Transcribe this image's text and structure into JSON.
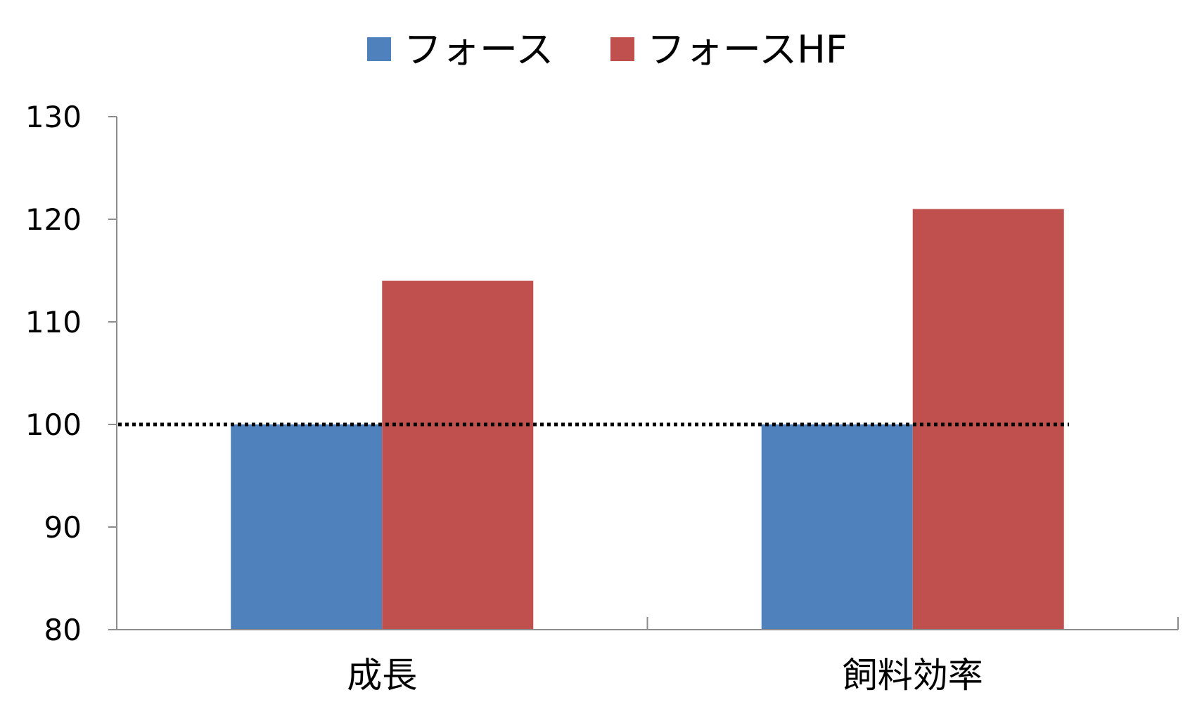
{
  "chart_data": {
    "type": "bar",
    "categories": [
      "成長",
      "飼料効率"
    ],
    "series": [
      {
        "name": "フォース",
        "color": "#4F81BD",
        "values": [
          100,
          100
        ]
      },
      {
        "name": "フォースHF",
        "color": "#C0504D",
        "values": [
          114,
          121
        ]
      }
    ],
    "ylim": [
      80,
      130
    ],
    "yticks": [
      80,
      90,
      100,
      110,
      120,
      130
    ],
    "reference_line": {
      "y": 100,
      "style": "dotted",
      "color": "#000000"
    },
    "legend": {
      "position": "top"
    },
    "grid": false
  }
}
